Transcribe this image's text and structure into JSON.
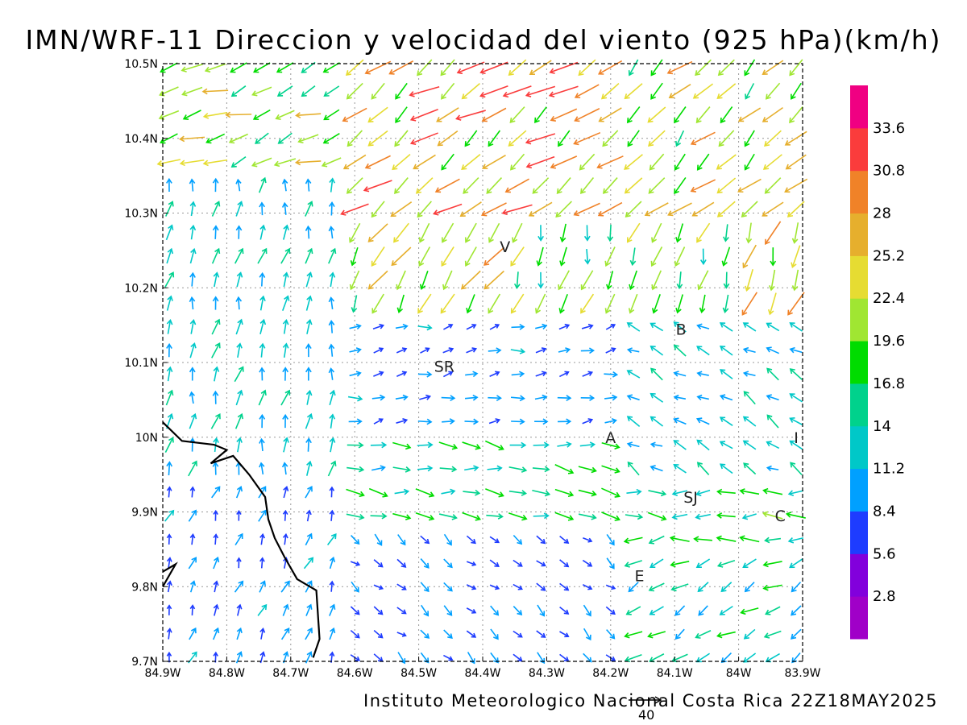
{
  "title": "IMN/WRF-11 Direccion y velocidad del viento (925 hPa)(km/h)",
  "footer": "Instituto Meteorologico Nacional Costa Rica 22Z18MAY2025",
  "reference_vector": {
    "label": "40",
    "speed": 40
  },
  "map": {
    "lon_range": [
      -84.9,
      -83.9
    ],
    "lat_range": [
      9.7,
      10.5
    ],
    "x_ticks": [
      {
        "value": -84.9,
        "label": "84.9W"
      },
      {
        "value": -84.8,
        "label": "84.8W"
      },
      {
        "value": -84.7,
        "label": "84.7W"
      },
      {
        "value": -84.6,
        "label": "84.6W"
      },
      {
        "value": -84.5,
        "label": "84.5W"
      },
      {
        "value": -84.4,
        "label": "84.4W"
      },
      {
        "value": -84.3,
        "label": "84.3W"
      },
      {
        "value": -84.2,
        "label": "84.2W"
      },
      {
        "value": -84.1,
        "label": "84.1W"
      },
      {
        "value": -84.0,
        "label": "84W"
      },
      {
        "value": -83.9,
        "label": "83.9W"
      }
    ],
    "y_ticks": [
      {
        "value": 10.5,
        "label": "10.5N"
      },
      {
        "value": 10.4,
        "label": "10.4N"
      },
      {
        "value": 10.3,
        "label": "10.3N"
      },
      {
        "value": 10.2,
        "label": "10.2N"
      },
      {
        "value": 10.1,
        "label": "10.1N"
      },
      {
        "value": 10.0,
        "label": "10N"
      },
      {
        "value": 9.9,
        "label": "9.9N"
      },
      {
        "value": 9.8,
        "label": "9.8N"
      },
      {
        "value": 9.7,
        "label": "9.7N"
      }
    ],
    "places": [
      {
        "name": "V",
        "lon": -84.365,
        "lat": 10.255
      },
      {
        "name": "B",
        "lon": -84.09,
        "lat": 10.145
      },
      {
        "name": "SR",
        "lon": -84.46,
        "lat": 10.095
      },
      {
        "name": "A",
        "lon": -84.2,
        "lat": 10.0
      },
      {
        "name": "I",
        "lon": -83.91,
        "lat": 10.0
      },
      {
        "name": "SJ",
        "lon": -84.075,
        "lat": 9.92
      },
      {
        "name": "C",
        "lon": -83.935,
        "lat": 9.895
      },
      {
        "name": "E",
        "lon": -84.155,
        "lat": 9.815
      }
    ],
    "coastline": [
      [
        -84.9,
        10.02
      ],
      [
        -84.87,
        9.995
      ],
      [
        -84.82,
        9.99
      ],
      [
        -84.8,
        9.983
      ],
      [
        -84.825,
        9.965
      ],
      [
        -84.79,
        9.975
      ],
      [
        -84.765,
        9.95
      ],
      [
        -84.74,
        9.92
      ],
      [
        -84.735,
        9.89
      ],
      [
        -84.725,
        9.865
      ],
      [
        -84.71,
        9.84
      ],
      [
        -84.69,
        9.81
      ],
      [
        -84.66,
        9.795
      ],
      [
        -84.655,
        9.73
      ],
      [
        -84.665,
        9.705
      ]
    ],
    "coastline_west": [
      [
        -84.9,
        9.82
      ],
      [
        -84.88,
        9.83
      ],
      [
        -84.9,
        9.8
      ]
    ]
  },
  "colorbar": {
    "levels": [
      "2.8",
      "5.6",
      "8.4",
      "11.2",
      "14",
      "16.8",
      "19.6",
      "22.4",
      "25.2",
      "28",
      "30.8",
      "33.6"
    ],
    "colors": [
      "#a000c8",
      "#8200dc",
      "#1e3cff",
      "#00a0ff",
      "#00c8c8",
      "#00d28c",
      "#00dc00",
      "#a0e632",
      "#e6dc32",
      "#e6af2d",
      "#f08228",
      "#fa3c3c",
      "#f00082"
    ]
  },
  "wind_field": {
    "description_grid": "barbs sampled on a regular lon/lat grid",
    "regions": [
      {
        "lon": [
          -84.9,
          -84.6
        ],
        "lat": [
          10.35,
          10.5
        ],
        "dir_deg": 250,
        "speed": 21
      },
      {
        "lon": [
          -84.6,
          -84.2
        ],
        "lat": [
          10.3,
          10.5
        ],
        "dir_deg": 235,
        "speed": 26
      },
      {
        "lon": [
          -84.2,
          -83.9
        ],
        "lat": [
          10.3,
          10.5
        ],
        "dir_deg": 225,
        "speed": 22
      },
      {
        "lon": [
          -84.6,
          -84.35
        ],
        "lat": [
          10.15,
          10.3
        ],
        "dir_deg": 210,
        "speed": 22
      },
      {
        "lon": [
          -84.35,
          -84.0
        ],
        "lat": [
          10.15,
          10.3
        ],
        "dir_deg": 195,
        "speed": 18
      },
      {
        "lon": [
          -84.0,
          -83.9
        ],
        "lat": [
          10.15,
          10.3
        ],
        "dir_deg": 200,
        "speed": 24
      },
      {
        "lon": [
          -84.9,
          -84.6
        ],
        "lat": [
          9.95,
          10.35
        ],
        "dir_deg": 10,
        "speed": 12
      },
      {
        "lon": [
          -84.6,
          -84.2
        ],
        "lat": [
          10.0,
          10.15
        ],
        "dir_deg": 80,
        "speed": 9
      },
      {
        "lon": [
          -84.2,
          -83.9
        ],
        "lat": [
          9.95,
          10.15
        ],
        "dir_deg": 300,
        "speed": 12
      },
      {
        "lon": [
          -84.6,
          -84.1
        ],
        "lat": [
          9.88,
          10.0
        ],
        "dir_deg": 95,
        "speed": 15
      },
      {
        "lon": [
          -84.1,
          -83.9
        ],
        "lat": [
          9.85,
          9.95
        ],
        "dir_deg": 270,
        "speed": 16
      },
      {
        "lon": [
          -84.9,
          -84.6
        ],
        "lat": [
          9.7,
          9.95
        ],
        "dir_deg": 20,
        "speed": 9
      },
      {
        "lon": [
          -84.6,
          -84.2
        ],
        "lat": [
          9.7,
          9.88
        ],
        "dir_deg": 130,
        "speed": 8
      },
      {
        "lon": [
          -84.2,
          -83.9
        ],
        "lat": [
          9.7,
          9.85
        ],
        "dir_deg": 240,
        "speed": 14
      }
    ]
  }
}
